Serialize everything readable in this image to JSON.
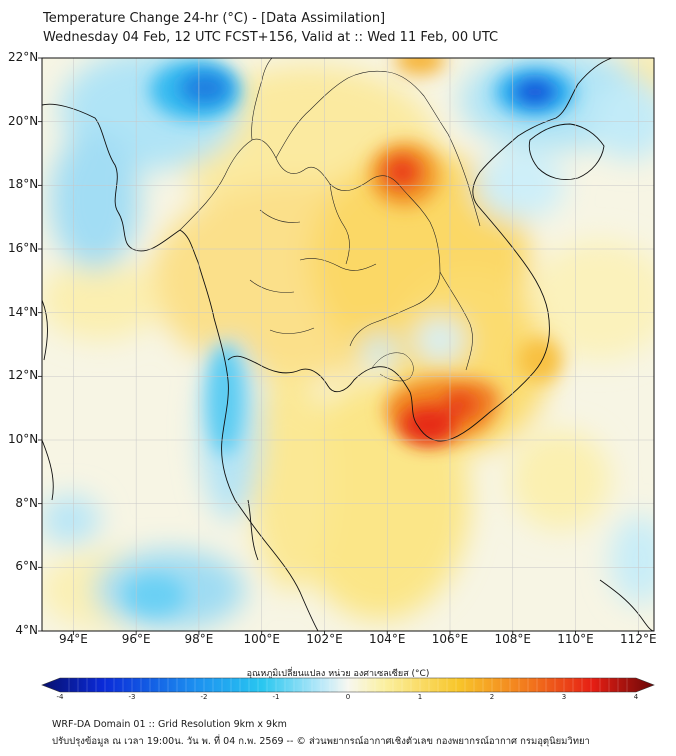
{
  "title": {
    "line1": "Temperature Change 24-hr (°C) - [Data Assimilation]",
    "line2": "Wednesday 04 Feb, 12 UTC FCST+156, Valid at :: Wed 11 Feb, 00 UTC"
  },
  "map": {
    "lat_labels": [
      "22°N",
      "20°N",
      "18°N",
      "16°N",
      "14°N",
      "12°N",
      "10°N",
      "8°N",
      "6°N",
      "4°N"
    ],
    "lon_labels": [
      "94°E",
      "96°E",
      "98°E",
      "100°E",
      "102°E",
      "104°E",
      "106°E",
      "108°E",
      "110°E",
      "112°E"
    ],
    "lat_range": [
      4,
      22
    ],
    "lon_range": [
      93,
      112.5
    ],
    "colors": {
      "strong_cool": "#0a2ad8",
      "cool": "#29c7f0",
      "weak_cool": "#bfeaf9",
      "neutral": "#f7f7ec",
      "weak_warm": "#fbf0a0",
      "warm": "#f8c62a",
      "hot": "#f2741c",
      "very_hot": "#e61e14"
    }
  },
  "colorbar": {
    "title": "อุณหภูมิเปลี่ยนแปลง หน่วย องศาเซลเซียส (°C)",
    "ticks": [
      "-4",
      "-3",
      "-2",
      "-1",
      "0",
      "1",
      "2",
      "3",
      "4"
    ],
    "min": -4,
    "max": 4
  },
  "footer": {
    "line1": "WRF-DA Domain 01 :: Grid Resolution 9km x 9km",
    "line2": "ปรับปรุงข้อมูล ณ เวลา 19:00น. วัน พ. ที่ 04 ก.พ. 2569 -- © ส่วนพยากรณ์อากาศเชิงตัวเลข กองพยากรณ์อากาศ กรมอุตุนิยมวิทยา"
  }
}
